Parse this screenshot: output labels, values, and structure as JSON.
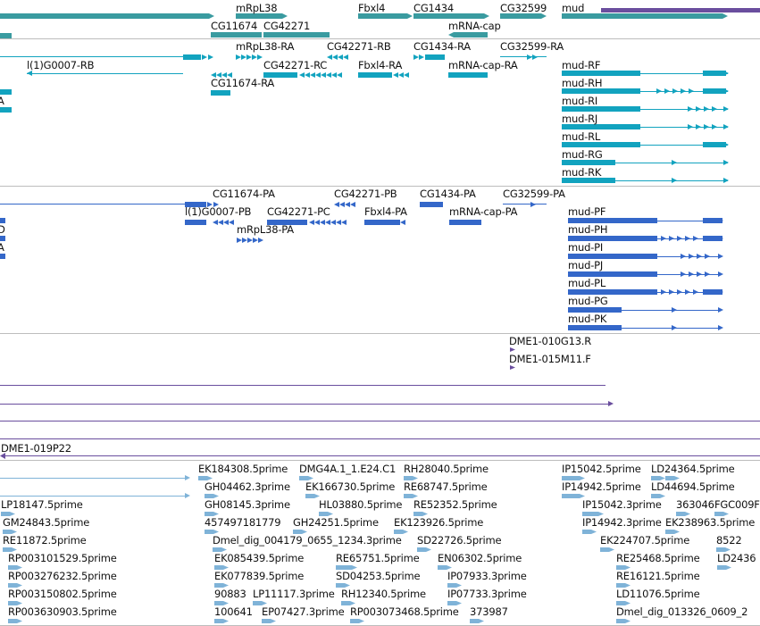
{
  "tracks": {
    "gene": {
      "color": "#3a9ba0",
      "labels": {
        "mRpL38": "mRpL38",
        "CG11674": "CG11674",
        "CG42271": "CG42271",
        "Fbxl4": "Fbxl4",
        "CG1434": "CG1434",
        "mRNA_cap": "mRNA-cap",
        "CG32599": "CG32599",
        "mud": "mud"
      }
    },
    "transcript_ra": {
      "color": "#12a3bf",
      "labels": {
        "l1G0007_RB": "l(1)G0007-RB",
        "CG11674_RA": "CG11674-RA",
        "mRpL38_RA": "mRpL38-RA",
        "CG42271_RC": "CG42271-RC",
        "CG42271_RB": "CG42271-RB",
        "Fbxl4_RA": "Fbxl4-RA",
        "CG1434_RA": "CG1434-RA",
        "mRNA_cap_RA": "mRNA-cap-RA",
        "CG32599_RA": "CG32599-RA",
        "mud_RF": "mud-RF",
        "mud_RH": "mud-RH",
        "mud_RI": "mud-RI",
        "mud_RJ": "mud-RJ",
        "mud_RL": "mud-RL",
        "mud_RG": "mud-RG",
        "mud_RK": "mud-RK",
        "left_a": "A"
      }
    },
    "protein_pa": {
      "color": "#3467c9",
      "labels": {
        "CG11674_PA": "CG11674-PA",
        "l1G0007_PB": "l(1)G0007-PB",
        "mRpL38_PA": "mRpL38-PA",
        "CG42271_PC": "CG42271-PC",
        "CG42271_PB": "CG42271-PB",
        "Fbxl4_PA": "Fbxl4-PA",
        "CG1434_PA": "CG1434-PA",
        "mRNA_cap_PA": "mRNA-cap-PA",
        "CG32599_PA": "CG32599-PA",
        "mud_PF": "mud-PF",
        "mud_PH": "mud-PH",
        "mud_PI": "mud-PI",
        "mud_PJ": "mud-PJ",
        "mud_PL": "mud-PL",
        "mud_PG": "mud-PG",
        "mud_PK": "mud-PK",
        "left_d": "D",
        "left_a": "A"
      }
    },
    "clones": {
      "color": "#6a4e9e",
      "labels": {
        "DME1_010G13_R": "DME1-010G13.R",
        "DME1_015M11_F": "DME1-015M11.F",
        "DME1_019P22": "DME1-019P22"
      }
    },
    "est": {
      "color": "#7fb3d8",
      "labels": [
        [
          "EK184308.5prime",
          "DMG4A.1_1.E24.C1",
          "RH28040.5prime",
          "IP15042.5prime",
          "LD24364.5prime"
        ],
        [
          "GH04462.3prime",
          "EK166730.5prime",
          "RE68747.5prime",
          "IP14942.5prime",
          "LD44694.5prime"
        ],
        [
          "LP18147.5prime",
          "GH08145.3prime",
          "HL03880.5prime",
          "RE52352.5prime",
          "IP15042.3prime",
          "363046",
          "FGC009F"
        ],
        [
          "GM24843.5prime",
          "457497181779",
          "GH24251.5prime",
          "EK123926.5prime",
          "IP14942.3prime",
          "EK238963.5prime"
        ],
        [
          "RE11872.5prime",
          "Dmel_dig_004179_0655_1234.3prime",
          "SD22726.5prime",
          "EK224707.5prime",
          "8522"
        ],
        [
          "RP003101529.5prime",
          "EK085439.5prime",
          "RE65751.5prime",
          "EN06302.5prime",
          "RE25468.5prime",
          "LD2436"
        ],
        [
          "RP003276232.5prime",
          "EK077839.5prime",
          "SD04253.5prime",
          "IP07933.3prime",
          "RE16121.5prime"
        ],
        [
          "RP003150802.5prime",
          "90883",
          "LP11117.3prime",
          "RH12340.5prime",
          "IP07733.3prime",
          "LD11076.5prime"
        ],
        [
          "RP003630903.5prime",
          "100641",
          "EP07427.3prime",
          "RP003073468.5prime",
          "373987",
          "Dmel_dig_013326_0609_2"
        ]
      ]
    }
  }
}
